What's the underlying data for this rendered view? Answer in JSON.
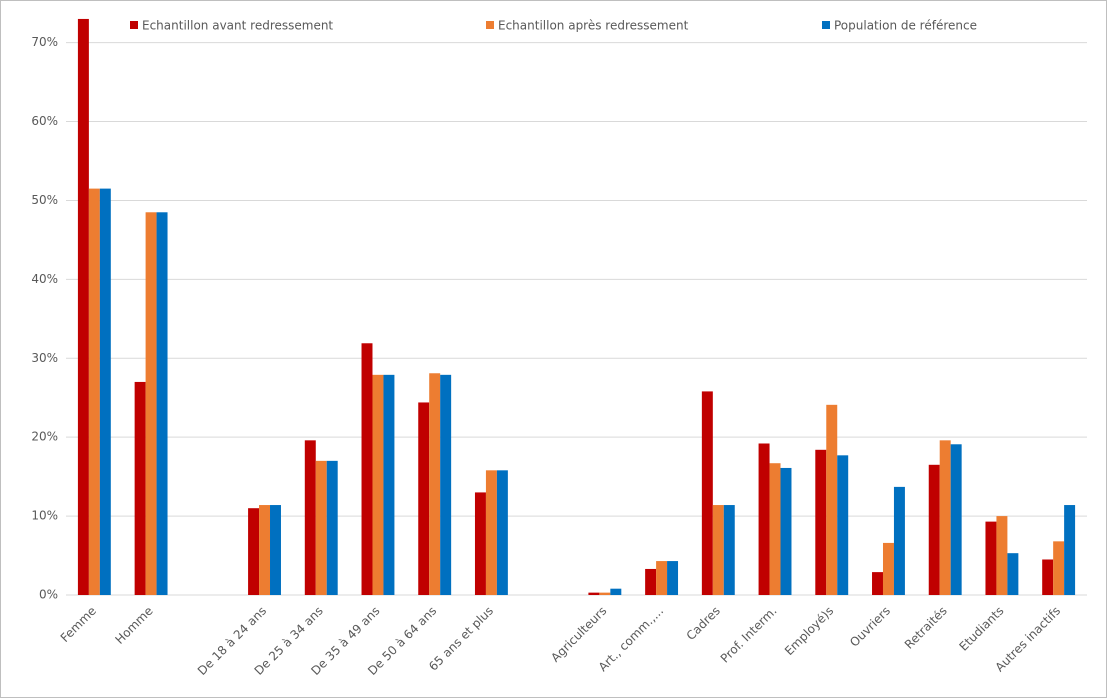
{
  "chart_data": {
    "type": "bar",
    "categories": [
      "Femme",
      "Homme",
      null,
      "De 18 à 24 ans",
      "De 25 à 34 ans",
      "De 35 à 49 ans",
      "De 50 à 64 ans",
      "65 ans et plus",
      null,
      "Agriculteurs",
      "Art., comm.,...",
      "Cadres",
      "Prof. Interm.",
      "Employé)s",
      "Ouvriers",
      "Retraités",
      "Etudiants",
      "Autres inactifs"
    ],
    "series": [
      {
        "name": "Echantillon avant redressement",
        "color": "#c00000",
        "values": [
          73,
          27,
          null,
          11,
          19.6,
          31.9,
          24.4,
          13,
          null,
          0.3,
          3.3,
          25.8,
          19.2,
          18.4,
          2.9,
          16.5,
          9.3,
          4.5
        ]
      },
      {
        "name": "Echantillon après redressement",
        "color": "#ed7d31",
        "values": [
          51.5,
          48.5,
          null,
          11.4,
          17,
          27.9,
          28.1,
          15.8,
          null,
          0.3,
          4.3,
          11.4,
          16.7,
          24.1,
          6.6,
          19.6,
          10,
          6.8
        ]
      },
      {
        "name": "Population de référence",
        "color": "#0070c0",
        "values": [
          51.5,
          48.5,
          null,
          11.4,
          17,
          27.9,
          27.9,
          15.8,
          null,
          0.8,
          4.3,
          11.4,
          16.1,
          17.7,
          13.7,
          19.1,
          5.3,
          11.4
        ]
      }
    ],
    "ylim": [
      0,
      73.5
    ],
    "yticks": [
      {
        "value": 0,
        "label": "0%"
      },
      {
        "value": 10,
        "label": "10%"
      },
      {
        "value": 20,
        "label": "20%"
      },
      {
        "value": 30,
        "label": "30%"
      },
      {
        "value": 40,
        "label": "40%"
      },
      {
        "value": 50,
        "label": "50%"
      },
      {
        "value": 60,
        "label": "60%"
      },
      {
        "value": 70,
        "label": "70%"
      }
    ],
    "grid": true,
    "legend": "top"
  }
}
